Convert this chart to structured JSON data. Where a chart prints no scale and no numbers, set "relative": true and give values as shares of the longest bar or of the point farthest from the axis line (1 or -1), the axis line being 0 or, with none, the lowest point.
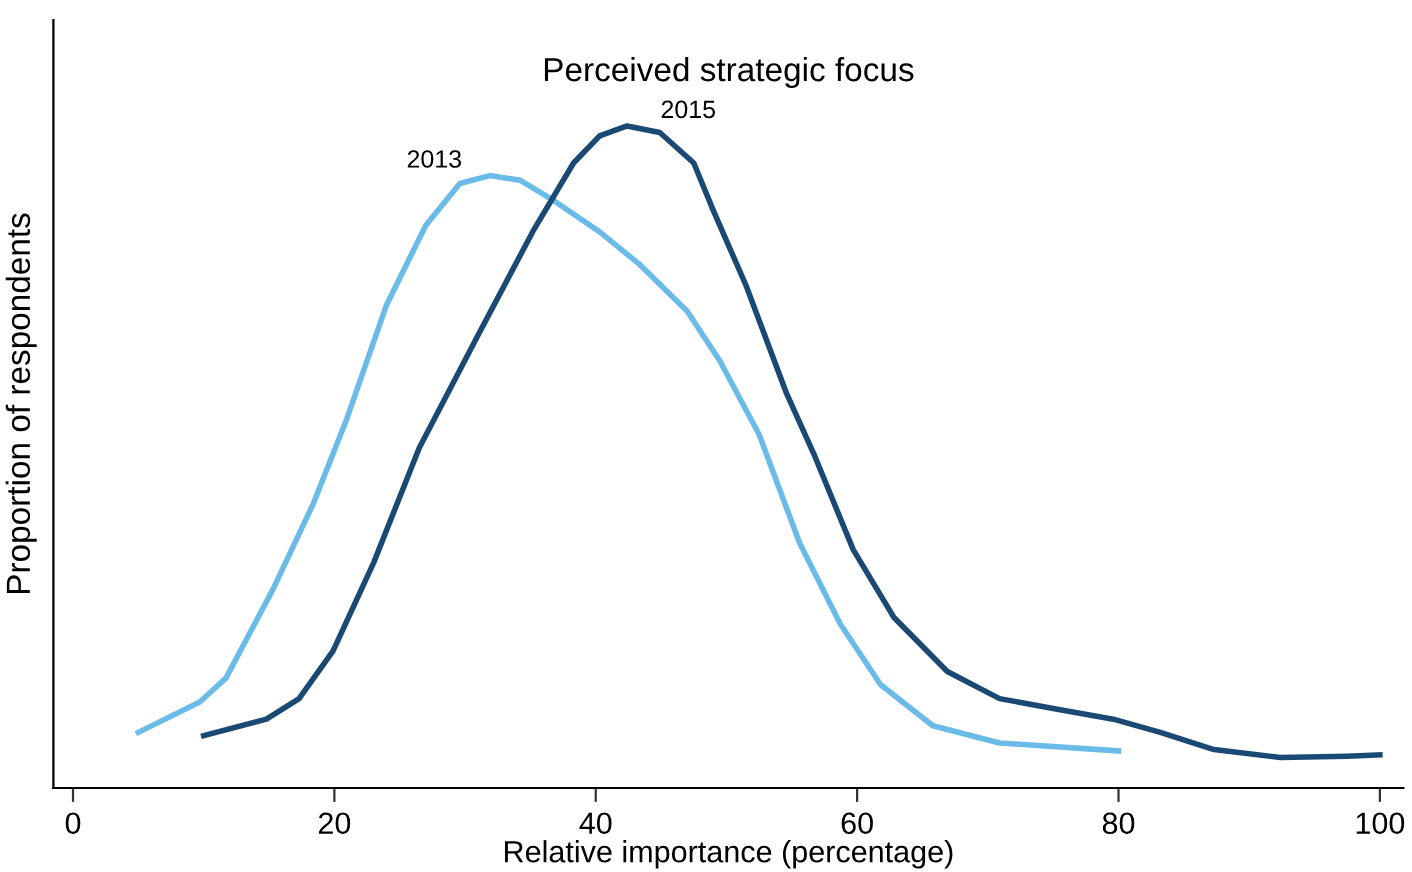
{
  "chart_data": {
    "type": "line",
    "title": "Perceived strategic focus",
    "xlabel": "Relative importance (percentage)",
    "ylabel": "Proportion of respondents",
    "relative": true,
    "xlim": [
      -1.5,
      101.8
    ],
    "xticks": [
      0,
      20,
      40,
      60,
      80,
      100
    ],
    "grid": false,
    "marker": "none",
    "line_style": "solid",
    "series": [
      {
        "name": "2013",
        "color": "#6bbbe9",
        "x": [
          5,
          9.7,
          11.7,
          15.3,
          18.4,
          20.9,
          24.0,
          27.0,
          29.6,
          31.9,
          34.2,
          36.8,
          40.3,
          43.4,
          47,
          49.5,
          52.5,
          55.6,
          58.7,
          61.8,
          65.8,
          70.9,
          80
        ],
        "values": [
          0.084,
          0.13,
          0.166,
          0.3,
          0.43,
          0.555,
          0.73,
          0.85,
          0.913,
          0.925,
          0.918,
          0.887,
          0.84,
          0.79,
          0.72,
          0.645,
          0.534,
          0.37,
          0.248,
          0.156,
          0.094,
          0.068,
          0.056
        ]
      },
      {
        "name": "2015",
        "color": "#1a4a73",
        "x": [
          10,
          14.8,
          17.3,
          19.9,
          23,
          26.5,
          31.1,
          35.2,
          38.3,
          40.3,
          42.4,
          44.9,
          47.5,
          49,
          51.5,
          54.6,
          56.7,
          59.7,
          62.8,
          66.9,
          70.9,
          75,
          79.6,
          83.2,
          87.3,
          92.4,
          97.5,
          100
        ],
        "values": [
          0.079,
          0.104,
          0.135,
          0.207,
          0.34,
          0.514,
          0.688,
          0.841,
          0.944,
          0.985,
          1,
          0.99,
          0.944,
          0.872,
          0.759,
          0.596,
          0.504,
          0.36,
          0.258,
          0.176,
          0.135,
          0.12,
          0.104,
          0.084,
          0.058,
          0.046,
          0.048,
          0.05
        ]
      }
    ]
  }
}
